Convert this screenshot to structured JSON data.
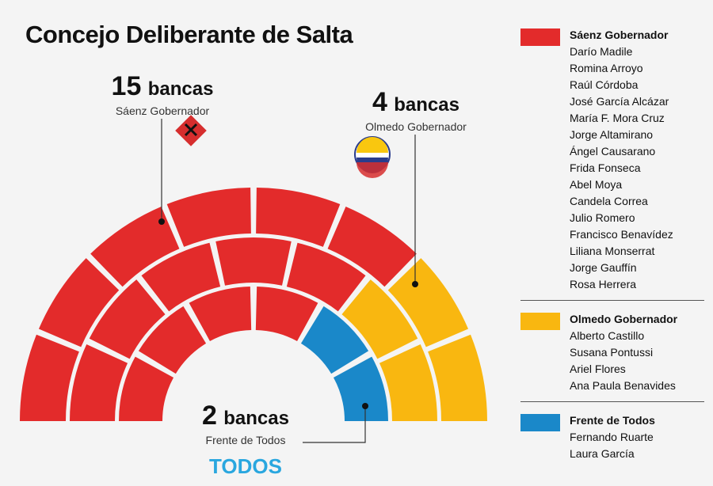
{
  "title": "Concejo Deliberante de Salta",
  "colors": {
    "saenz": "#e32b2b",
    "olmedo": "#f9b710",
    "todos": "#1a88c9"
  },
  "chart_data": {
    "type": "hemicycle",
    "title": "Concejo Deliberante de Salta",
    "total_seats": 21,
    "rows": [
      6,
      7,
      8
    ],
    "parties": [
      {
        "id": "saenz",
        "name": "Sáenz Gobernador",
        "seats": 15,
        "seats_num": "15",
        "seats_word": "bancas",
        "color": "#e32b2b"
      },
      {
        "id": "olmedo",
        "name": "Olmedo Gobernador",
        "seats": 4,
        "seats_num": "4",
        "seats_word": "bancas",
        "color": "#f9b710"
      },
      {
        "id": "todos",
        "name": "Frente de Todos",
        "seats": 2,
        "seats_num": "2",
        "seats_word": "bancas",
        "color": "#1a88c9"
      }
    ]
  },
  "callouts": {
    "saenz": {
      "num": "15",
      "word": "bancas",
      "party": "Sáenz Gobernador"
    },
    "olmedo": {
      "num": "4",
      "word": "bancas",
      "party": "Olmedo Gobernador"
    },
    "todos": {
      "num": "2",
      "word": "bancas",
      "party": "Frente de Todos"
    }
  },
  "legend": [
    {
      "name": "Sáenz Gobernador",
      "color": "#e32b2b",
      "members": [
        "Darío Madile",
        "Romina Arroyo",
        "Raúl Córdoba",
        "José García Alcázar",
        "María F. Mora Cruz",
        "Jorge Altamirano",
        "Ángel Causarano",
        "Frida Fonseca",
        "Abel Moya",
        "Candela Correa",
        "Julio Romero",
        "Francisco Benavídez",
        "Liliana Monserrat",
        "Jorge Gauffín",
        "Rosa Herrera"
      ]
    },
    {
      "name": "Olmedo Gobernador",
      "color": "#f9b710",
      "members": [
        "Alberto Castillo",
        "Susana Pontussi",
        "Ariel Flores",
        "Ana Paula Benavides"
      ]
    },
    {
      "name": "Frente de Todos",
      "color": "#1a88c9",
      "members": [
        "Fernando Ruarte",
        "Laura García"
      ]
    }
  ],
  "logos": {
    "todos": "TODOS",
    "olmedo_badge": "OLMEDO"
  }
}
